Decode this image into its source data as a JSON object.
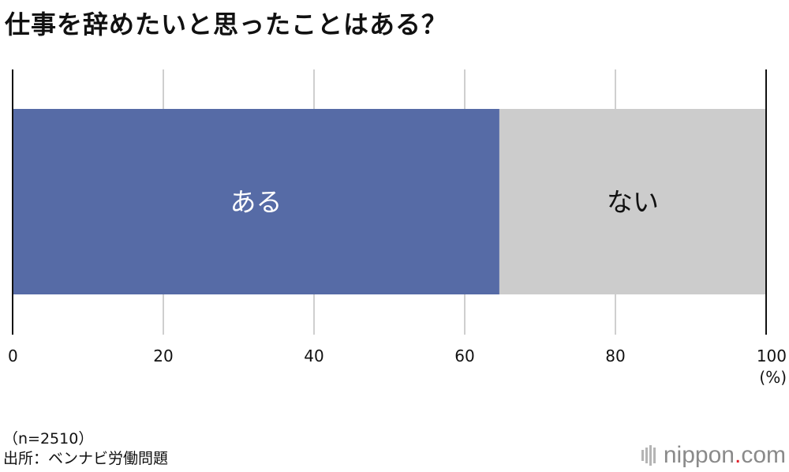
{
  "title": "仕事を辞めたいと思ったことはある？",
  "colors": {
    "yes": "#566ba6",
    "no": "#cccccc",
    "grid": "#cfcfcf",
    "axis": "#111111",
    "logo_dot": "#e0202a"
  },
  "chart_data": {
    "type": "bar",
    "orientation": "horizontal-stacked",
    "xlim": [
      0,
      100
    ],
    "xticks": [
      "0",
      "20",
      "40",
      "60",
      "80",
      "100"
    ],
    "tick_values": [
      0,
      20,
      40,
      60,
      80,
      100
    ],
    "unit": "(%)",
    "grid": true,
    "series": [
      {
        "name": "ある",
        "value": 64.6,
        "color": "#566ba6",
        "label_color": "#ffffff"
      },
      {
        "name": "ない",
        "value": 35.4,
        "color": "#cccccc",
        "label_color": "#111111"
      }
    ]
  },
  "footnote": {
    "sample": "（n=2510）",
    "source": "出所：ベンナビ労働問題"
  },
  "logo": {
    "text_main": "nippon",
    "text_dot": ".",
    "text_tail": "com"
  }
}
